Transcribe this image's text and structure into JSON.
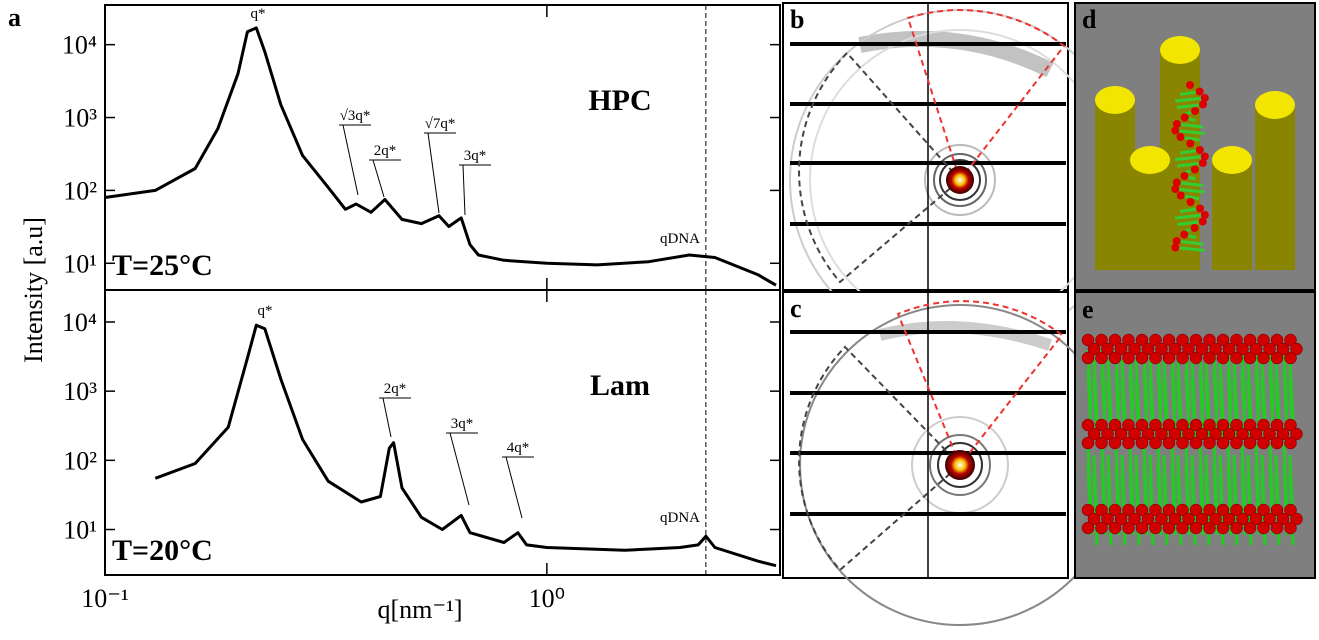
{
  "panel_labels": [
    "a",
    "b",
    "c",
    "d",
    "e"
  ],
  "chart_data": [
    {
      "type": "line",
      "color": "#000000",
      "log_x": true,
      "log_y": true,
      "ylabel": "Intensity [a.u]",
      "phase": "HPC",
      "temperature": "T=25°C",
      "annotations": [
        "q*",
        "√3q*",
        "2q*",
        "√7q*",
        "3q*",
        "qDNA"
      ],
      "x": [
        0.1,
        0.13,
        0.16,
        0.18,
        0.2,
        0.21,
        0.22,
        0.23,
        0.25,
        0.28,
        0.32,
        0.35,
        0.37,
        0.4,
        0.43,
        0.47,
        0.52,
        0.57,
        0.6,
        0.64,
        0.67,
        0.7,
        0.8,
        1.0,
        1.3,
        1.7,
        2.1,
        2.4,
        3.0,
        3.3
      ],
      "values": [
        80,
        100,
        200,
        700,
        4000,
        15000,
        17000,
        8000,
        1500,
        300,
        110,
        55,
        65,
        50,
        75,
        40,
        35,
        45,
        32,
        42,
        18,
        13,
        11,
        10,
        9.5,
        10.5,
        13,
        12,
        7,
        5
      ],
      "xlim": [
        0.1,
        3.37
      ],
      "xticks": [
        0.1,
        1
      ],
      "ylim": [
        4.3,
        35000
      ],
      "yticks": [
        {
          "value": 10,
          "label": "10¹"
        },
        {
          "value": 100,
          "label": "10²"
        },
        {
          "value": 1000,
          "label": "10³"
        },
        {
          "value": 10000,
          "label": "10⁴"
        }
      ],
      "reference_x": 2.29
    },
    {
      "type": "line",
      "color": "#000000",
      "log_x": true,
      "log_y": true,
      "xlabel": "q[nm⁻¹]",
      "phase": "Lam",
      "temperature": "T=20°C",
      "annotations": [
        "q*",
        "2q*",
        "3q*",
        "4q*",
        "qDNA"
      ],
      "x": [
        0.13,
        0.16,
        0.19,
        0.21,
        0.22,
        0.23,
        0.25,
        0.28,
        0.32,
        0.38,
        0.42,
        0.44,
        0.45,
        0.47,
        0.52,
        0.58,
        0.64,
        0.67,
        0.8,
        0.86,
        0.9,
        1.0,
        1.5,
        2.0,
        2.2,
        2.29,
        2.4,
        3.0,
        3.3
      ],
      "values": [
        55,
        90,
        300,
        3000,
        9000,
        8000,
        1500,
        200,
        50,
        25,
        30,
        150,
        180,
        40,
        15,
        10,
        16,
        9,
        6.5,
        9,
        6,
        5.5,
        5,
        5.5,
        6,
        8,
        5.5,
        3.5,
        3
      ],
      "xlim": [
        0.1,
        3.37
      ],
      "xticks": [
        {
          "value": 0.1,
          "label": "10⁻¹"
        },
        {
          "value": 1,
          "label": "10⁰"
        }
      ],
      "ylim": [
        2.2,
        29000
      ],
      "yticks": [
        {
          "value": 10,
          "label": "10¹"
        },
        {
          "value": 100,
          "label": "10²"
        },
        {
          "value": 1000,
          "label": "10³"
        },
        {
          "value": 10000,
          "label": "10⁴"
        }
      ],
      "reference_x": 2.29
    }
  ]
}
